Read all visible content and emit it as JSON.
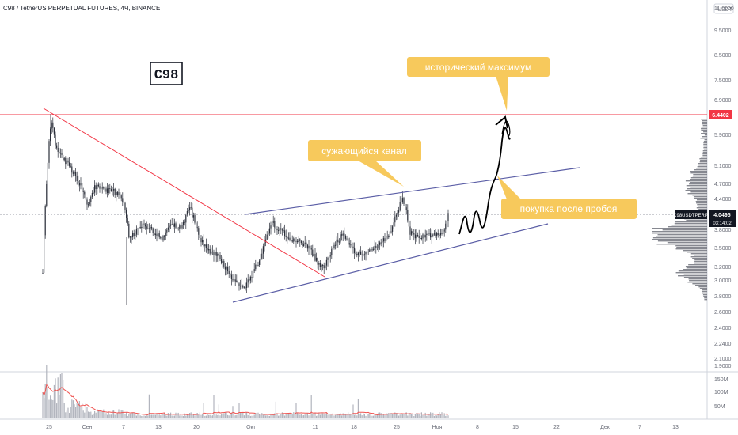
{
  "header": {
    "title": "C98 / TetherUS PERPETUAL FUTURES, 4Ч, BINANCE",
    "currency": "USDT",
    "symbol_box": "C98"
  },
  "colors": {
    "candle": "#2a2e39",
    "red_line": "#f23645",
    "channel": "#5b5ea6",
    "label_bg": "#f7c95c",
    "volume": "#b2b5be",
    "volume_ma": "#ef5350"
  },
  "chart_data": {
    "type": "candlestick",
    "x_ticks": [
      "25",
      "Сен",
      "7",
      "13",
      "20",
      "Окт",
      "11",
      "18",
      "25",
      "Ноя",
      "8",
      "15",
      "22",
      "Дек",
      "7",
      "13"
    ],
    "y_ticks": [
      "11.0000",
      "9.5000",
      "8.5000",
      "7.5000",
      "6.9000",
      "5.9000",
      "5.1000",
      "4.7000",
      "4.4000",
      "3.8000",
      "3.5000",
      "3.2000",
      "3.0000",
      "2.8000",
      "2.6000",
      "2.4000",
      "2.2400",
      "2.1000",
      "1.9000"
    ],
    "volume_ticks": [
      "150M",
      "100M",
      "50M"
    ],
    "price_markers": [
      {
        "label": "6.4402",
        "value": 6.4402,
        "color": "#f23645"
      },
      {
        "label": "4.0495",
        "value": 4.0495,
        "color": "#131722"
      }
    ],
    "symbol_tag": {
      "symbol": "C98USDTPERP",
      "price": "4.0495",
      "countdown": "03:14:02"
    },
    "annotations": [
      {
        "text": "исторический максимум",
        "target": "ATH level"
      },
      {
        "text": "сужающийся канал",
        "target": "upper channel line"
      },
      {
        "text": "покупка после пробоя",
        "target": "breakout path"
      }
    ],
    "levels": {
      "resistance": 6.4402,
      "last_price": 4.0495
    },
    "chart_style": "candles with volume histogram and volume moving average",
    "grid": false
  }
}
